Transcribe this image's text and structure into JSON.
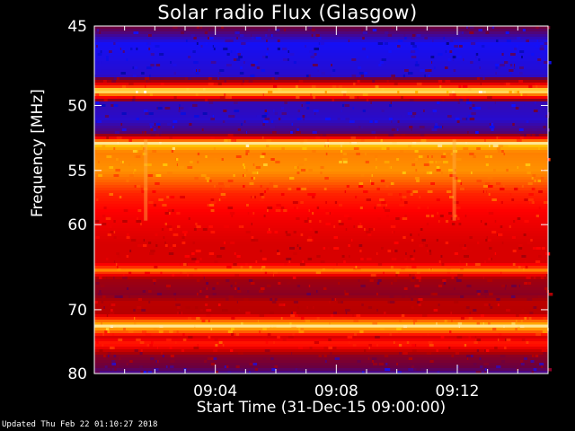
{
  "chart_data": {
    "type": "heatmap",
    "title": "Solar radio Flux (Glasgow)",
    "ylabel": "Frequency [MHz]",
    "xlabel": "Start Time (31-Dec-15 09:00:00)",
    "y_ticks": [
      "45",
      "50",
      "55",
      "60",
      "70",
      "80"
    ],
    "y_tick_values": [
      45,
      50,
      55,
      60,
      70,
      80
    ],
    "x_ticks": [
      "09:04",
      "09:08",
      "09:12"
    ],
    "x_tick_minutes": [
      4,
      8,
      12
    ],
    "xlim_minutes": [
      0,
      15
    ],
    "ylim": [
      45,
      80
    ],
    "y_scale": "reciprocal",
    "colormap": [
      "#00004a",
      "#1010ff",
      "#6a0040",
      "#b00000",
      "#ff0000",
      "#ff6a00",
      "#ffc000",
      "#ffffff"
    ],
    "intensity_profile": [
      {
        "mhz": 45.0,
        "level": 0.3
      },
      {
        "mhz": 46.0,
        "level": 0.15
      },
      {
        "mhz": 48.0,
        "level": 0.18
      },
      {
        "mhz": 48.8,
        "level": 0.7
      },
      {
        "mhz": 49.0,
        "level": 0.98
      },
      {
        "mhz": 49.3,
        "level": 0.7
      },
      {
        "mhz": 49.8,
        "level": 0.2
      },
      {
        "mhz": 51.0,
        "level": 0.18
      },
      {
        "mhz": 52.0,
        "level": 0.25
      },
      {
        "mhz": 52.8,
        "level": 0.9
      },
      {
        "mhz": 53.5,
        "level": 0.75
      },
      {
        "mhz": 55.0,
        "level": 0.78
      },
      {
        "mhz": 57.0,
        "level": 0.62
      },
      {
        "mhz": 59.0,
        "level": 0.56
      },
      {
        "mhz": 62.0,
        "level": 0.5
      },
      {
        "mhz": 64.0,
        "level": 0.5
      },
      {
        "mhz": 65.0,
        "level": 0.72
      },
      {
        "mhz": 66.0,
        "level": 0.4
      },
      {
        "mhz": 68.0,
        "level": 0.35
      },
      {
        "mhz": 69.0,
        "level": 0.45
      },
      {
        "mhz": 70.5,
        "level": 0.44
      },
      {
        "mhz": 72.3,
        "level": 0.9
      },
      {
        "mhz": 74.0,
        "level": 0.5
      },
      {
        "mhz": 75.0,
        "level": 0.62
      },
      {
        "mhz": 77.0,
        "level": 0.35
      },
      {
        "mhz": 79.0,
        "level": 0.28
      },
      {
        "mhz": 80.0,
        "level": 0.22
      }
    ],
    "bright_lines_mhz": [
      48.9,
      52.8,
      65.0,
      72.3
    ],
    "burst_columns_minutes": [
      1.7,
      11.9
    ]
  },
  "updated_text": "Updated Thu Feb 22 01:10:27 2018"
}
